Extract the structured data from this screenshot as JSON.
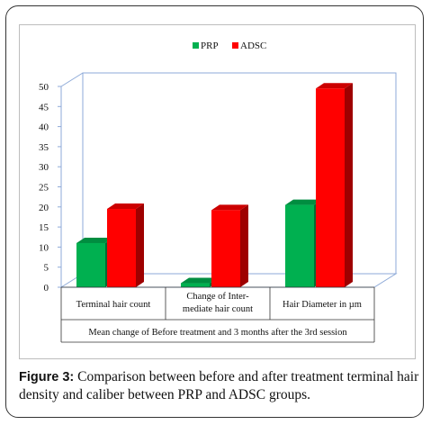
{
  "caption": {
    "label": "Figure 3:",
    "text": " Comparison between before and after treatment terminal hair density and caliber between PRP and ADSC groups."
  },
  "chart_data": {
    "type": "bar",
    "title": "",
    "xlabel": "Mean change of Before treatment and 3 months after the 3rd session",
    "ylabel": "",
    "ylim": [
      0,
      50
    ],
    "yticks": [
      0,
      5,
      10,
      15,
      20,
      25,
      30,
      35,
      40,
      45,
      50
    ],
    "categories": [
      [
        "Terminal hair count"
      ],
      [
        "Change of Inter-",
        "mediate hair count"
      ],
      [
        "Hair Diameter in µm"
      ]
    ],
    "series": [
      {
        "name": "PRP",
        "color": "#00b050",
        "values": [
          11,
          1,
          20.5
        ]
      },
      {
        "name": "ADSC",
        "color": "#ff0000",
        "values": [
          19.5,
          19.2,
          49.5
        ]
      }
    ],
    "legend": "top-center",
    "grid": false
  }
}
